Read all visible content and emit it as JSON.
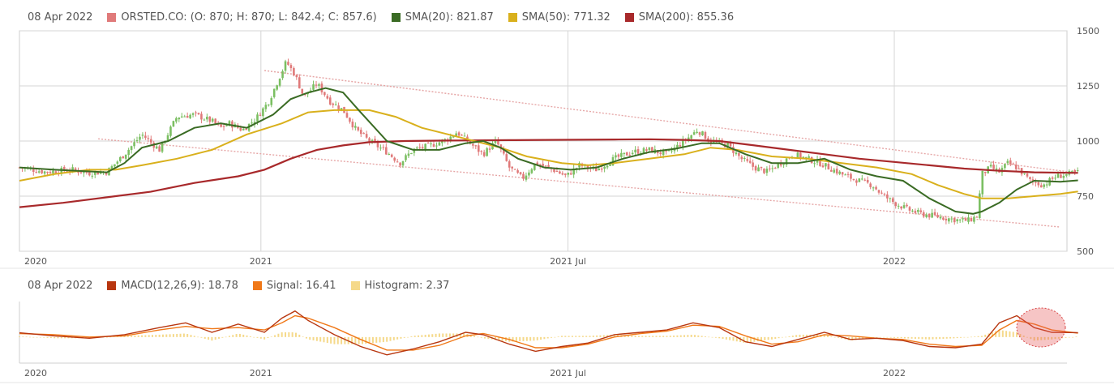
{
  "price_legend": {
    "date": "08 Apr 2022",
    "items": [
      {
        "label": "ORSTED.CO: (O: 870; H: 870; L: 842.4; C: 857.6)",
        "color": "#e07a7a"
      },
      {
        "label": "SMA(20): 821.87",
        "color": "#3a6b24"
      },
      {
        "label": "SMA(50): 771.32",
        "color": "#d9b01c"
      },
      {
        "label": "SMA(200): 855.36",
        "color": "#a8292b"
      }
    ]
  },
  "macd_legend": {
    "date": "08 Apr 2022",
    "items": [
      {
        "label": "MACD(12,26,9): 18.78",
        "color": "#b8360f"
      },
      {
        "label": "Signal: 16.41",
        "color": "#f07818"
      },
      {
        "label": "Histogram: 2.37",
        "color": "#f5d98a"
      }
    ]
  },
  "chart_data": [
    {
      "type": "candlestick",
      "symbol": "ORSTED.CO",
      "y_ticks": [
        500,
        750,
        1000,
        1250,
        1500
      ],
      "ylim": [
        500,
        1500
      ],
      "x_tick_labels": [
        "2020",
        "2021",
        "2021 Jul",
        "2022"
      ],
      "close_path": [
        [
          0.0,
          880
        ],
        [
          0.03,
          860
        ],
        [
          0.06,
          870
        ],
        [
          0.08,
          855
        ],
        [
          0.1,
          860
        ],
        [
          0.12,
          940
        ],
        [
          0.14,
          1030
        ],
        [
          0.16,
          960
        ],
        [
          0.18,
          1110
        ],
        [
          0.2,
          1120
        ],
        [
          0.22,
          1090
        ],
        [
          0.23,
          1060
        ],
        [
          0.24,
          1080
        ],
        [
          0.255,
          1050
        ],
        [
          0.27,
          1100
        ],
        [
          0.285,
          1180
        ],
        [
          0.295,
          1270
        ],
        [
          0.305,
          1360
        ],
        [
          0.315,
          1300
        ],
        [
          0.325,
          1200
        ],
        [
          0.34,
          1260
        ],
        [
          0.355,
          1180
        ],
        [
          0.37,
          1140
        ],
        [
          0.385,
          1050
        ],
        [
          0.4,
          1000
        ],
        [
          0.42,
          950
        ],
        [
          0.435,
          900
        ],
        [
          0.45,
          960
        ],
        [
          0.47,
          980
        ],
        [
          0.49,
          1010
        ],
        [
          0.5,
          1040
        ],
        [
          0.515,
          990
        ],
        [
          0.53,
          940
        ],
        [
          0.545,
          1000
        ],
        [
          0.56,
          880
        ],
        [
          0.575,
          830
        ],
        [
          0.59,
          900
        ],
        [
          0.61,
          870
        ],
        [
          0.625,
          840
        ],
        [
          0.64,
          890
        ],
        [
          0.66,
          870
        ],
        [
          0.68,
          920
        ],
        [
          0.7,
          950
        ],
        [
          0.72,
          960
        ],
        [
          0.74,
          940
        ],
        [
          0.76,
          1000
        ],
        [
          0.775,
          1050
        ],
        [
          0.79,
          1000
        ],
        [
          0.81,
          980
        ],
        [
          0.825,
          920
        ],
        [
          0.84,
          880
        ],
        [
          0.855,
          860
        ],
        [
          0.87,
          900
        ],
        [
          0.885,
          940
        ],
        [
          0.9,
          920
        ],
        [
          0.915,
          900
        ],
        [
          0.93,
          870
        ],
        [
          0.945,
          840
        ],
        [
          0.96,
          820
        ],
        [
          0.975,
          800
        ],
        [
          0.985,
          760
        ],
        [
          1.0,
          720
        ],
        [
          1.015,
          690
        ],
        [
          1.03,
          670
        ],
        [
          1.045,
          660
        ],
        [
          1.06,
          650
        ],
        [
          1.075,
          640
        ],
        [
          1.085,
          640
        ],
        [
          1.095,
          660
        ],
        [
          1.1,
          850
        ],
        [
          1.11,
          880
        ],
        [
          1.12,
          860
        ],
        [
          1.13,
          900
        ],
        [
          1.14,
          880
        ],
        [
          1.155,
          820
        ],
        [
          1.17,
          800
        ],
        [
          1.185,
          840
        ],
        [
          1.2,
          850
        ],
        [
          1.21,
          857.6
        ]
      ],
      "sma20": [
        [
          0.0,
          880
        ],
        [
          0.04,
          870
        ],
        [
          0.08,
          862
        ],
        [
          0.1,
          858
        ],
        [
          0.12,
          900
        ],
        [
          0.14,
          970
        ],
        [
          0.17,
          1000
        ],
        [
          0.2,
          1060
        ],
        [
          0.23,
          1080
        ],
        [
          0.26,
          1060
        ],
        [
          0.29,
          1120
        ],
        [
          0.31,
          1190
        ],
        [
          0.33,
          1220
        ],
        [
          0.35,
          1240
        ],
        [
          0.37,
          1220
        ],
        [
          0.39,
          1130
        ],
        [
          0.42,
          1000
        ],
        [
          0.45,
          960
        ],
        [
          0.48,
          960
        ],
        [
          0.51,
          990
        ],
        [
          0.53,
          1000
        ],
        [
          0.55,
          970
        ],
        [
          0.57,
          920
        ],
        [
          0.6,
          880
        ],
        [
          0.63,
          870
        ],
        [
          0.66,
          880
        ],
        [
          0.69,
          920
        ],
        [
          0.72,
          950
        ],
        [
          0.75,
          965
        ],
        [
          0.78,
          990
        ],
        [
          0.8,
          990
        ],
        [
          0.83,
          940
        ],
        [
          0.86,
          900
        ],
        [
          0.89,
          900
        ],
        [
          0.92,
          920
        ],
        [
          0.95,
          870
        ],
        [
          0.98,
          840
        ],
        [
          1.01,
          820
        ],
        [
          1.04,
          740
        ],
        [
          1.07,
          680
        ],
        [
          1.09,
          670
        ],
        [
          1.1,
          680
        ],
        [
          1.12,
          720
        ],
        [
          1.14,
          780
        ],
        [
          1.16,
          820
        ],
        [
          1.19,
          815
        ],
        [
          1.21,
          821.87
        ]
      ],
      "sma50": [
        [
          0.0,
          820
        ],
        [
          0.04,
          850
        ],
        [
          0.08,
          870
        ],
        [
          0.11,
          870
        ],
        [
          0.14,
          890
        ],
        [
          0.18,
          920
        ],
        [
          0.22,
          960
        ],
        [
          0.26,
          1030
        ],
        [
          0.3,
          1080
        ],
        [
          0.33,
          1130
        ],
        [
          0.36,
          1140
        ],
        [
          0.4,
          1140
        ],
        [
          0.43,
          1110
        ],
        [
          0.46,
          1060
        ],
        [
          0.49,
          1030
        ],
        [
          0.52,
          1000
        ],
        [
          0.55,
          970
        ],
        [
          0.58,
          930
        ],
        [
          0.62,
          900
        ],
        [
          0.65,
          890
        ],
        [
          0.68,
          900
        ],
        [
          0.72,
          920
        ],
        [
          0.76,
          940
        ],
        [
          0.79,
          970
        ],
        [
          0.82,
          960
        ],
        [
          0.86,
          930
        ],
        [
          0.9,
          920
        ],
        [
          0.94,
          900
        ],
        [
          0.98,
          880
        ],
        [
          1.02,
          850
        ],
        [
          1.05,
          800
        ],
        [
          1.08,
          760
        ],
        [
          1.1,
          740
        ],
        [
          1.13,
          740
        ],
        [
          1.16,
          750
        ],
        [
          1.19,
          760
        ],
        [
          1.21,
          771.32
        ]
      ],
      "sma200": [
        [
          0.0,
          700
        ],
        [
          0.05,
          720
        ],
        [
          0.1,
          745
        ],
        [
          0.15,
          770
        ],
        [
          0.2,
          810
        ],
        [
          0.25,
          840
        ],
        [
          0.28,
          870
        ],
        [
          0.31,
          920
        ],
        [
          0.34,
          960
        ],
        [
          0.37,
          980
        ],
        [
          0.4,
          995
        ],
        [
          0.44,
          1000
        ],
        [
          0.48,
          1002
        ],
        [
          0.52,
          1003
        ],
        [
          0.56,
          1004
        ],
        [
          0.6,
          1005
        ],
        [
          0.64,
          1006
        ],
        [
          0.68,
          1007
        ],
        [
          0.72,
          1008
        ],
        [
          0.76,
          1005
        ],
        [
          0.8,
          1000
        ],
        [
          0.84,
          980
        ],
        [
          0.88,
          960
        ],
        [
          0.92,
          940
        ],
        [
          0.96,
          920
        ],
        [
          1.0,
          905
        ],
        [
          1.04,
          890
        ],
        [
          1.08,
          875
        ],
        [
          1.12,
          865
        ],
        [
          1.16,
          858
        ],
        [
          1.21,
          855.36
        ]
      ],
      "channel_upper": [
        [
          0.28,
          1320
        ],
        [
          1.21,
          855
        ]
      ],
      "channel_lower": [
        [
          0.09,
          1010
        ],
        [
          1.19,
          610
        ]
      ]
    },
    {
      "type": "macd",
      "x_tick_labels": [
        "2020",
        "2021",
        "2021 Jul",
        "2022"
      ],
      "macd": [
        [
          0.0,
          18
        ],
        [
          0.04,
          5
        ],
        [
          0.08,
          -5
        ],
        [
          0.12,
          10
        ],
        [
          0.16,
          40
        ],
        [
          0.19,
          60
        ],
        [
          0.22,
          20
        ],
        [
          0.25,
          55
        ],
        [
          0.28,
          20
        ],
        [
          0.3,
          80
        ],
        [
          0.315,
          110
        ],
        [
          0.33,
          70
        ],
        [
          0.36,
          10
        ],
        [
          0.39,
          -40
        ],
        [
          0.42,
          -75
        ],
        [
          0.45,
          -50
        ],
        [
          0.48,
          -20
        ],
        [
          0.51,
          20
        ],
        [
          0.53,
          10
        ],
        [
          0.56,
          -30
        ],
        [
          0.59,
          -60
        ],
        [
          0.62,
          -40
        ],
        [
          0.65,
          -25
        ],
        [
          0.68,
          10
        ],
        [
          0.71,
          20
        ],
        [
          0.74,
          30
        ],
        [
          0.77,
          60
        ],
        [
          0.8,
          40
        ],
        [
          0.83,
          -20
        ],
        [
          0.86,
          -40
        ],
        [
          0.89,
          -10
        ],
        [
          0.92,
          20
        ],
        [
          0.95,
          -10
        ],
        [
          0.98,
          -5
        ],
        [
          1.01,
          -15
        ],
        [
          1.04,
          -40
        ],
        [
          1.07,
          -45
        ],
        [
          1.1,
          -30
        ],
        [
          1.12,
          60
        ],
        [
          1.14,
          90
        ],
        [
          1.16,
          40
        ],
        [
          1.18,
          20
        ],
        [
          1.21,
          18.78
        ]
      ],
      "signal": [
        [
          0.0,
          15
        ],
        [
          0.04,
          10
        ],
        [
          0.08,
          0
        ],
        [
          0.12,
          5
        ],
        [
          0.16,
          30
        ],
        [
          0.19,
          45
        ],
        [
          0.22,
          35
        ],
        [
          0.25,
          40
        ],
        [
          0.28,
          30
        ],
        [
          0.3,
          60
        ],
        [
          0.315,
          90
        ],
        [
          0.33,
          80
        ],
        [
          0.36,
          40
        ],
        [
          0.39,
          -10
        ],
        [
          0.42,
          -55
        ],
        [
          0.45,
          -55
        ],
        [
          0.48,
          -35
        ],
        [
          0.51,
          5
        ],
        [
          0.53,
          15
        ],
        [
          0.56,
          -10
        ],
        [
          0.59,
          -45
        ],
        [
          0.62,
          -45
        ],
        [
          0.65,
          -30
        ],
        [
          0.68,
          0
        ],
        [
          0.71,
          15
        ],
        [
          0.74,
          25
        ],
        [
          0.77,
          50
        ],
        [
          0.8,
          45
        ],
        [
          0.83,
          5
        ],
        [
          0.86,
          -30
        ],
        [
          0.89,
          -20
        ],
        [
          0.92,
          10
        ],
        [
          0.95,
          5
        ],
        [
          0.98,
          -5
        ],
        [
          1.01,
          -10
        ],
        [
          1.04,
          -30
        ],
        [
          1.07,
          -40
        ],
        [
          1.1,
          -35
        ],
        [
          1.12,
          30
        ],
        [
          1.14,
          70
        ],
        [
          1.16,
          55
        ],
        [
          1.18,
          30
        ],
        [
          1.21,
          16.41
        ]
      ],
      "ylim": [
        -110,
        150
      ]
    }
  ]
}
